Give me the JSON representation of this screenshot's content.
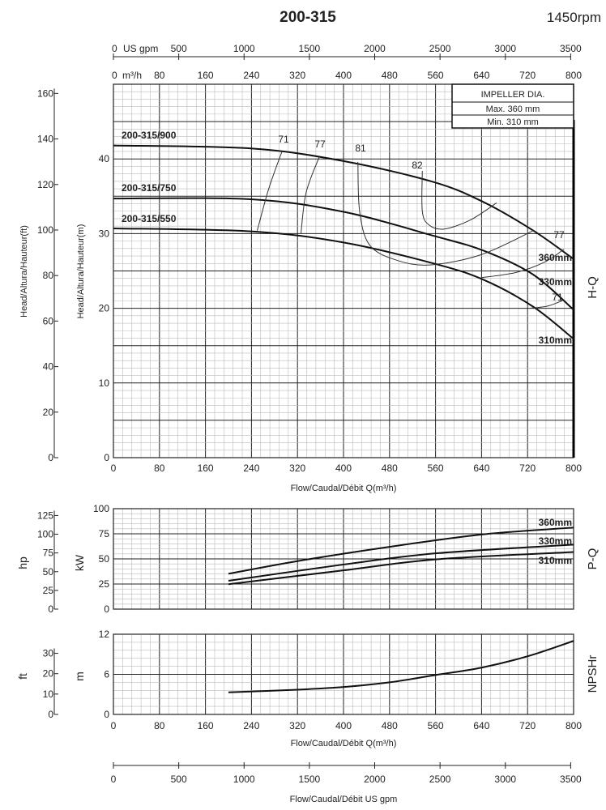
{
  "chart_data": [
    {
      "type": "line",
      "title": "200-315",
      "speed": "1450rpm",
      "panel_label": "H-Q",
      "xlabel": "Flow/Caudal/Débit Q(m³/h)",
      "ylabel_m": "Head/Altura/Hauteur(m)",
      "ylabel_ft": "Head/Altura/Hauteur(ft)",
      "xlim": [
        0,
        800
      ],
      "ylim_m": [
        0,
        50
      ],
      "x_ticks": [
        0,
        80,
        160,
        240,
        320,
        400,
        480,
        560,
        640,
        720,
        800
      ],
      "y_ticks_m": [
        0,
        10,
        20,
        30,
        40
      ],
      "y_ticks_ft": [
        0,
        20,
        40,
        60,
        80,
        100,
        120,
        140,
        160
      ],
      "top_axis_m3h_unit": "m³/h",
      "top_axis_gpm_unit": "US gpm",
      "gpm_ticks": [
        0,
        500,
        1000,
        1500,
        2000,
        2500,
        3000,
        3500
      ],
      "grid": true,
      "impeller_box": {
        "title": "IMPELLER DIA.",
        "max_label": "Max.",
        "max_value": "360",
        "min_label": "Min.",
        "min_value": "310",
        "unit": "mm"
      },
      "model_labels": [
        "200-315/900",
        "200-315/750",
        "200-315/550"
      ],
      "series": [
        {
          "name": "360mm",
          "x": [
            0,
            239,
            401,
            557,
            644,
            730,
            800
          ],
          "y": [
            41.8,
            41.4,
            39.7,
            36.9,
            34.2,
            30.4,
            26.6
          ]
        },
        {
          "name": "330mm",
          "x": [
            0,
            239,
            401,
            557,
            644,
            730,
            800
          ],
          "y": [
            34.7,
            34.6,
            32.9,
            29.7,
            27.7,
            24.5,
            19.8
          ]
        },
        {
          "name": "310mm",
          "x": [
            0,
            239,
            401,
            557,
            644,
            730,
            800
          ],
          "y": [
            30.7,
            30.3,
            28.8,
            26.0,
            23.8,
            20.2,
            15.9
          ]
        }
      ],
      "efficiency_curves": [
        {
          "label": "71",
          "x": [
            293,
            270,
            250
          ],
          "y": [
            41.0,
            36,
            30.4
          ]
        },
        {
          "label": "77",
          "x": [
            358,
            335,
            326
          ],
          "y": [
            40.3,
            35.5,
            30.0
          ]
        },
        {
          "label": "81",
          "x": [
            425,
            428,
            445,
            490,
            550,
            640,
            730
          ],
          "y": [
            39.6,
            33,
            28.5,
            26.5,
            25.8,
            27.2,
            30.4
          ]
        },
        {
          "label": "82",
          "x": [
            537,
            537,
            548,
            574,
            620,
            666
          ],
          "y": [
            38.4,
            33,
            31.2,
            30.6,
            31.8,
            34.1
          ]
        },
        {
          "label": "77",
          "x": [
            639,
            700,
            750,
            783
          ],
          "y": [
            24.1,
            24.8,
            26.2,
            27.9
          ]
        },
        {
          "label": "71",
          "x": [
            724,
            755,
            780
          ],
          "y": [
            20.0,
            20.3,
            21.0
          ]
        }
      ]
    },
    {
      "type": "line",
      "panel_label": "P-Q",
      "ylabel": "kW",
      "ylabel_hp": "hp",
      "xlim": [
        0,
        800
      ],
      "ylim": [
        0,
        100
      ],
      "y_ticks": [
        0,
        25,
        50,
        75,
        100
      ],
      "y_ticks_hp": [
        0,
        25,
        50,
        75,
        100,
        125
      ],
      "grid": true,
      "series": [
        {
          "name": "360mm",
          "x": [
            200,
            320,
            475,
            642,
            800
          ],
          "y": [
            35.2,
            47.8,
            61.6,
            74.4,
            81.2
          ]
        },
        {
          "name": "330mm",
          "x": [
            200,
            400,
            562,
            800
          ],
          "y": [
            28.2,
            44.4,
            55.6,
            64.2
          ]
        },
        {
          "name": "310mm",
          "x": [
            200,
            400,
            562,
            800
          ],
          "y": [
            24.8,
            38.6,
            49.6,
            56.9
          ]
        }
      ]
    },
    {
      "type": "line",
      "panel_label": "NPSHr",
      "ylabel": "m",
      "ylabel_ft": "ft",
      "xlabel": "Flow/Caudal/Débit Q(m³/h)",
      "xlim": [
        0,
        800
      ],
      "ylim": [
        0,
        12
      ],
      "y_ticks": [
        0,
        6,
        12
      ],
      "y_ticks_ft": [
        0,
        10,
        20,
        30
      ],
      "grid": true,
      "series": [
        {
          "x": [
            200,
            320,
            400,
            480,
            560,
            640,
            720,
            800
          ],
          "y": [
            3.3,
            3.7,
            4.1,
            4.8,
            5.9,
            7.0,
            8.7,
            11.0
          ]
        }
      ]
    },
    {
      "type": "axis",
      "xlabel": "Flow/Caudal/Débit  US gpm",
      "x_ticks": [
        0,
        500,
        1000,
        1500,
        2000,
        2500,
        3000,
        3500
      ]
    }
  ]
}
